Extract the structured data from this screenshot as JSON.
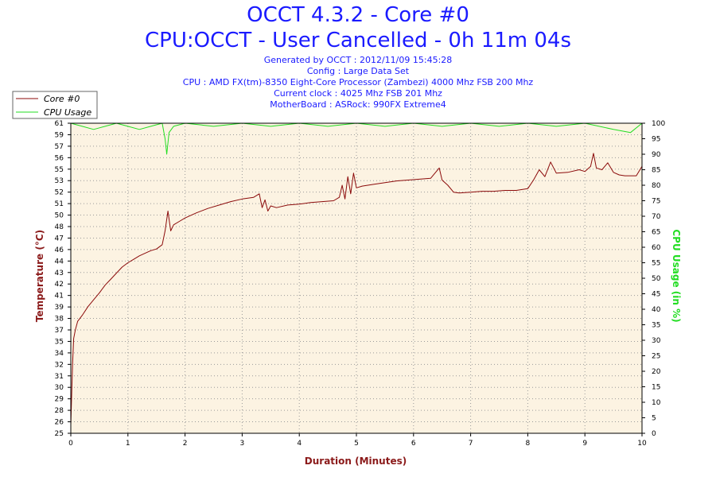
{
  "header": {
    "title": "OCCT 4.3.2 - Core #0",
    "subtitle": "CPU:OCCT - User Cancelled - 0h 11m 04s",
    "info": [
      "Generated by OCCT : 2012/11/09 15:45:28",
      "Config : Large Data Set",
      "CPU : AMD FX(tm)-8350 Eight-Core Processor (Zambezi) 4000 Mhz FSB 200 Mhz",
      "Current clock : 4025 Mhz FSB 201 Mhz",
      "MotherBoard : ASRock: 990FX Extreme4"
    ]
  },
  "colors": {
    "temperature": "#8b0a0a",
    "cpu_usage": "#22dd22",
    "plot_bg": "#fcf3e2",
    "grid": "#9a9a9a",
    "title": "#1a1aff"
  },
  "chart_data": {
    "type": "line",
    "xlabel": "Duration (Minutes)",
    "ylabel_left": "Temperature (°C)",
    "ylabel_right": "CPU Usage (in %)",
    "xlim": [
      0,
      10
    ],
    "ylim_left": [
      25,
      61
    ],
    "ylim_right": [
      0,
      100
    ],
    "x_ticks": [
      "0",
      "1",
      "2",
      "3",
      "4",
      "5",
      "6",
      "7",
      "8",
      "9",
      "10"
    ],
    "y_left_ticks": [
      "25",
      "26",
      "28",
      "29",
      "30",
      "31",
      "32",
      "34",
      "35",
      "37",
      "38",
      "39",
      "41",
      "42",
      "43",
      "44",
      "46",
      "47",
      "48",
      "50",
      "51",
      "52",
      "53",
      "55",
      "56",
      "57",
      "59",
      "61"
    ],
    "y_right_ticks": [
      "0",
      "5",
      "10",
      "15",
      "20",
      "25",
      "30",
      "35",
      "40",
      "45",
      "50",
      "55",
      "60",
      "65",
      "70",
      "75",
      "80",
      "85",
      "90",
      "95",
      "100"
    ],
    "grid": true,
    "legend_position": "top-left",
    "series": [
      {
        "name": "Core #0",
        "axis": "left",
        "x": [
          0,
          0.03,
          0.05,
          0.08,
          0.12,
          0.2,
          0.3,
          0.4,
          0.5,
          0.6,
          0.7,
          0.8,
          0.9,
          1.0,
          1.1,
          1.2,
          1.3,
          1.4,
          1.5,
          1.6,
          1.65,
          1.7,
          1.75,
          1.8,
          1.9,
          2.0,
          2.2,
          2.4,
          2.6,
          2.8,
          3.0,
          3.2,
          3.3,
          3.35,
          3.4,
          3.45,
          3.5,
          3.6,
          3.8,
          4.0,
          4.2,
          4.4,
          4.6,
          4.7,
          4.75,
          4.8,
          4.85,
          4.9,
          4.95,
          5.0,
          5.1,
          5.3,
          5.5,
          5.7,
          5.9,
          6.1,
          6.3,
          6.45,
          6.5,
          6.6,
          6.7,
          6.8,
          7.0,
          7.2,
          7.4,
          7.6,
          7.8,
          8.0,
          8.1,
          8.2,
          8.3,
          8.4,
          8.5,
          8.7,
          8.9,
          9.0,
          9.1,
          9.15,
          9.2,
          9.3,
          9.4,
          9.5,
          9.6,
          9.7,
          9.8,
          9.9,
          10.0
        ],
        "y": [
          26,
          33,
          36,
          37,
          38,
          38.7,
          39.7,
          40.5,
          41.3,
          42.2,
          42.9,
          43.6,
          44.3,
          44.8,
          45.2,
          45.6,
          45.9,
          46.2,
          46.4,
          46.9,
          48.5,
          50.8,
          48.5,
          49.2,
          49.6,
          50.0,
          50.6,
          51.1,
          51.5,
          51.9,
          52.2,
          52.4,
          52.8,
          51.2,
          52.1,
          50.8,
          51.4,
          51.2,
          51.5,
          51.6,
          51.8,
          51.9,
          52.0,
          52.4,
          53.8,
          52.2,
          54.8,
          52.8,
          55.2,
          53.5,
          53.7,
          53.9,
          54.1,
          54.3,
          54.4,
          54.5,
          54.6,
          55.8,
          54.4,
          53.8,
          53.0,
          52.9,
          53.0,
          53.1,
          53.1,
          53.2,
          53.2,
          53.4,
          54.4,
          55.6,
          54.8,
          56.5,
          55.2,
          55.3,
          55.6,
          55.4,
          56.0,
          57.5,
          55.8,
          55.6,
          56.4,
          55.3,
          55.0,
          54.9,
          54.9,
          54.9,
          56.0
        ]
      },
      {
        "name": "CPU Usage",
        "axis": "right",
        "x": [
          0,
          0.2,
          0.4,
          0.6,
          0.8,
          1.0,
          1.2,
          1.4,
          1.6,
          1.65,
          1.68,
          1.72,
          1.8,
          2.0,
          2.5,
          3.0,
          3.5,
          4.0,
          4.5,
          5.0,
          5.5,
          6.0,
          6.5,
          7.0,
          7.5,
          8.0,
          8.5,
          9.0,
          9.5,
          9.8,
          10.0
        ],
        "y": [
          100,
          99,
          98,
          99,
          100,
          99,
          98,
          99,
          100,
          95,
          90,
          97,
          99,
          100,
          99,
          100,
          99,
          100,
          99,
          100,
          99,
          100,
          99,
          100,
          99,
          100,
          99,
          100,
          98,
          97,
          100
        ]
      }
    ]
  }
}
